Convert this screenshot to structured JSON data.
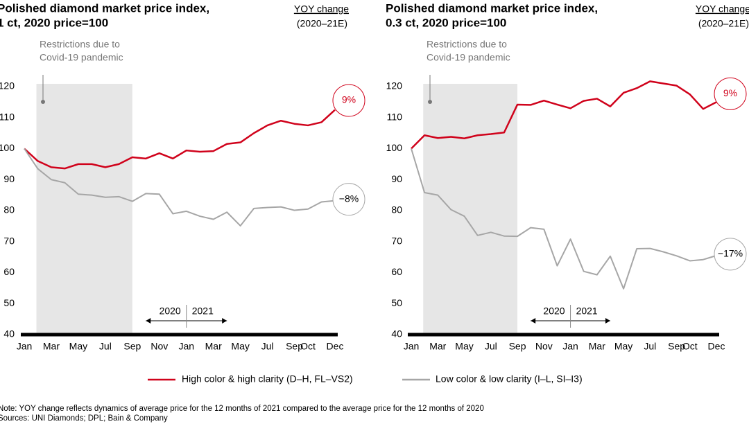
{
  "chart_data": [
    {
      "type": "line",
      "title": [
        "Polished diamond market price index,",
        "1 ct, 2020 price=100"
      ],
      "yoy_header": "YOY change",
      "yoy_period": "(2020–21E)",
      "annotation": [
        "Restrictions due to",
        "Covid-19 pandemic"
      ],
      "years": [
        "2020",
        "2021"
      ],
      "categories": [
        "Jan",
        null,
        "Mar",
        null,
        "May",
        null,
        "Jul",
        null,
        "Sep",
        null,
        "Nov",
        null,
        "Jan",
        null,
        "Mar",
        null,
        "May",
        null,
        "Jul",
        null,
        "Sep",
        "Oct",
        null,
        "Dec"
      ],
      "ylim": [
        40,
        120
      ],
      "yticks": [
        40,
        50,
        60,
        70,
        80,
        90,
        100,
        110,
        120
      ],
      "grid": false,
      "series": [
        {
          "name": "High color & high clarity (D–H, FL–VS2)",
          "color": "#d0021b",
          "yoy_change": {
            "value": 9,
            "label": "9%"
          },
          "values": [
            100,
            96,
            94,
            93.6,
            95,
            95,
            94,
            95,
            97.2,
            96.8,
            98.5,
            96.8,
            99.4,
            99,
            99.2,
            101.5,
            102,
            105,
            107.5,
            109,
            108,
            107.5,
            108.5,
            112.5
          ]
        },
        {
          "name": "Low color & low clarity (I–L, SI–I3)",
          "color": "#a6a6a6",
          "yoy_change": {
            "value": -8,
            "label": "−8%"
          },
          "values": [
            100,
            93.5,
            90,
            89,
            85.3,
            85,
            84.3,
            84.5,
            83,
            85.5,
            85.3,
            79,
            79.8,
            78.2,
            77.2,
            79.5,
            75.1,
            80.7,
            81,
            81.2,
            80.1,
            80.5,
            82.8,
            83.2
          ]
        }
      ]
    },
    {
      "type": "line",
      "title": [
        "Polished diamond market price index,",
        "0.3 ct, 2020 price=100"
      ],
      "yoy_header": "YOY change",
      "yoy_period": "(2020–21E)",
      "annotation": [
        "Restrictions due to",
        "Covid-19 pandemic"
      ],
      "years": [
        "2020",
        "2021"
      ],
      "categories": [
        "Jan",
        null,
        "Mar",
        null,
        "May",
        null,
        "Jul",
        null,
        "Sep",
        null,
        "Nov",
        null,
        "Jan",
        null,
        "Mar",
        null,
        "May",
        null,
        "Jul",
        null,
        "Sep",
        "Oct",
        null,
        "Dec"
      ],
      "ylim": [
        40,
        120
      ],
      "yticks": [
        40,
        50,
        60,
        70,
        80,
        90,
        100,
        110,
        120
      ],
      "grid": false,
      "series": [
        {
          "name": "High color & high clarity (D–H, FL–VS2)",
          "color": "#d0021b",
          "yoy_change": {
            "value": 9,
            "label": "9%"
          },
          "values": [
            100,
            104.3,
            103.4,
            103.8,
            103.3,
            104.3,
            104.7,
            105.2,
            114.2,
            114.1,
            115.5,
            114.2,
            113,
            115.4,
            116.1,
            113.6,
            118,
            119.5,
            121.7,
            121,
            120.3,
            117.5,
            112.8,
            115
          ]
        },
        {
          "name": "Low color & low clarity (I–L, SI–I3)",
          "color": "#a6a6a6",
          "yoy_change": {
            "value": -17,
            "label": "−17%"
          },
          "values": [
            100,
            85.8,
            85,
            80.3,
            78.2,
            72,
            73,
            71.8,
            71.7,
            74.5,
            74,
            62.2,
            70.8,
            60.4,
            59.3,
            65.3,
            54.8,
            67.7,
            67.8,
            66.7,
            65.4,
            63.8,
            64.2,
            65.5
          ]
        }
      ]
    }
  ],
  "note": "Note: YOY change reflects dynamics of average price for the 12 months of 2021 compared to the average price for the 12 months of 2020",
  "sources": "Sources: UNI Diamonds; DPL; Bain & Company"
}
